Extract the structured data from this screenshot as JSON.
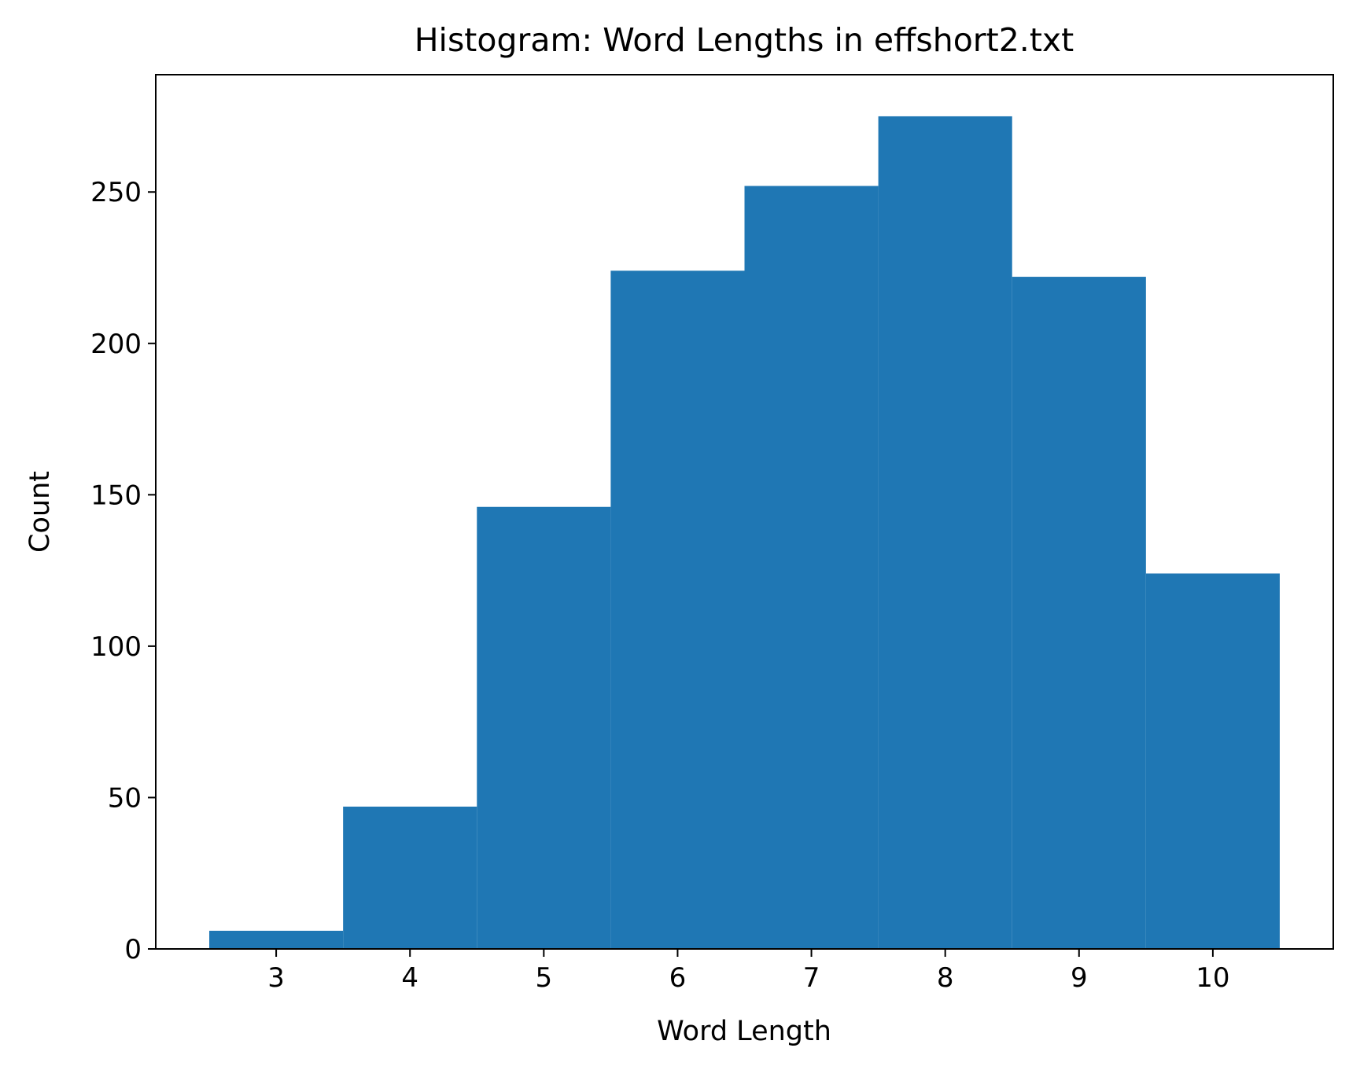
{
  "chart_data": {
    "type": "bar",
    "title": "Histogram: Word Lengths in effshort2.txt",
    "xlabel": "Word Length",
    "ylabel": "Count",
    "bins": [
      {
        "start": 2.5,
        "end": 3.5,
        "count": 6
      },
      {
        "start": 3.5,
        "end": 4.5,
        "count": 47
      },
      {
        "start": 4.5,
        "end": 5.5,
        "count": 146
      },
      {
        "start": 5.5,
        "end": 6.5,
        "count": 224
      },
      {
        "start": 6.5,
        "end": 7.5,
        "count": 252
      },
      {
        "start": 7.5,
        "end": 8.5,
        "count": 275
      },
      {
        "start": 8.5,
        "end": 9.5,
        "count": 222
      },
      {
        "start": 9.5,
        "end": 10.5,
        "count": 124
      }
    ],
    "xlim": [
      2.1,
      10.9
    ],
    "ylim": [
      0,
      288.75
    ],
    "xticks": [
      3,
      4,
      5,
      6,
      7,
      8,
      9,
      10
    ],
    "xtick_labels": [
      "3",
      "4",
      "5",
      "6",
      "7",
      "8",
      "9",
      "10"
    ],
    "yticks": [
      0,
      50,
      100,
      150,
      200,
      250
    ],
    "ytick_labels": [
      "0",
      "50",
      "100",
      "150",
      "200",
      "250"
    ],
    "bar_color": "#1f77b4",
    "grid": false,
    "legend": false
  }
}
